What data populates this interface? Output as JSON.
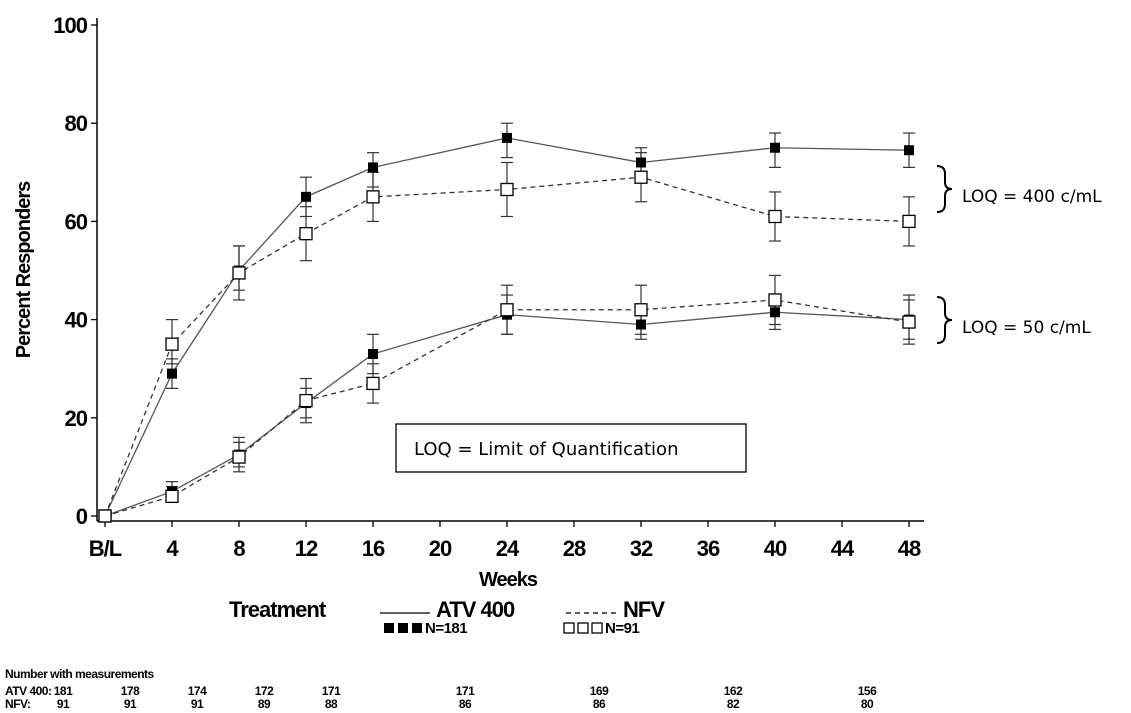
{
  "chart_data": {
    "type": "line",
    "xlabel": "Weeks",
    "ylabel": "Percent Responders",
    "ylim": [
      0,
      100
    ],
    "yticks": [
      0,
      20,
      40,
      60,
      80,
      100
    ],
    "xlim": [
      0,
      48
    ],
    "xticks": [
      {
        "value": 0,
        "label": "B/L"
      },
      {
        "value": 4,
        "label": "4"
      },
      {
        "value": 8,
        "label": "8"
      },
      {
        "value": 12,
        "label": "12"
      },
      {
        "value": 16,
        "label": "16"
      },
      {
        "value": 20,
        "label": "20"
      },
      {
        "value": 24,
        "label": "24"
      },
      {
        "value": 28,
        "label": "28"
      },
      {
        "value": 32,
        "label": "32"
      },
      {
        "value": 36,
        "label": "36"
      },
      {
        "value": 40,
        "label": "40"
      },
      {
        "value": 44,
        "label": "44"
      },
      {
        "value": 48,
        "label": "48"
      }
    ],
    "grid": false,
    "x": [
      0,
      4,
      8,
      12,
      16,
      24,
      32,
      40,
      48
    ],
    "series": [
      {
        "name": "ATV 400",
        "group": "LOQ = 400 c/mL",
        "line": "solid",
        "marker": "filled-square",
        "values": [
          0,
          29,
          50,
          65,
          71,
          77,
          72,
          75,
          74.5
        ],
        "err_low": [
          0,
          26,
          46,
          61,
          67,
          73,
          69,
          71,
          71
        ],
        "err_high": [
          0,
          32,
          55,
          69,
          74,
          80,
          75,
          78,
          78
        ]
      },
      {
        "name": "NFV",
        "group": "LOQ = 400 c/mL",
        "line": "dashed",
        "marker": "open-square",
        "values": [
          0,
          35,
          49.5,
          57.5,
          65,
          66.5,
          69,
          61,
          60
        ],
        "err_low": [
          0,
          31,
          44,
          52,
          60,
          61,
          64,
          56,
          55
        ],
        "err_high": [
          0,
          40,
          55,
          63,
          70,
          72,
          74,
          66,
          65
        ]
      },
      {
        "name": "ATV 400",
        "group": "LOQ = 50 c/mL",
        "line": "solid",
        "marker": "filled-square",
        "values": [
          0,
          5,
          12.5,
          23,
          33,
          41,
          39,
          41.5,
          40
        ],
        "err_low": [
          0,
          3,
          10,
          20,
          29,
          37,
          36,
          38,
          36
        ],
        "err_high": [
          0,
          7,
          15,
          26,
          37,
          45,
          42,
          45,
          44
        ]
      },
      {
        "name": "NFV",
        "group": "LOQ = 50 c/mL",
        "line": "dashed",
        "marker": "open-square",
        "values": [
          0,
          4,
          12,
          23.5,
          27,
          42,
          42,
          44,
          39.5
        ],
        "err_low": [
          0,
          3,
          9,
          19,
          23,
          37,
          37,
          39,
          35
        ],
        "err_high": [
          0,
          6,
          16,
          28,
          31,
          47,
          47,
          49,
          45
        ]
      }
    ],
    "legend": {
      "title": "Treatment",
      "entries": [
        {
          "label": "ATV 400",
          "n_label": "N=181",
          "line": "solid",
          "marker": "filled-square"
        },
        {
          "label": "NFV",
          "n_label": "N=91",
          "line": "dashed",
          "marker": "open-square"
        }
      ],
      "placement": "bottom"
    },
    "annotations": {
      "loq_400": "LOQ = 400 c/mL",
      "loq_50": "LOQ = 50 c/mL",
      "note": "LOQ = Limit of Quantification"
    },
    "measurements": {
      "title": "Number with measurements",
      "weeks": [
        0,
        4,
        8,
        12,
        16,
        24,
        32,
        40,
        48
      ],
      "rows": [
        {
          "label": "ATV 400:",
          "counts": [
            "181",
            "178",
            "174",
            "172",
            "171",
            "171",
            "169",
            "162",
            "156"
          ]
        },
        {
          "label": "NFV:",
          "counts": [
            "91",
            "91",
            "91",
            "89",
            "88",
            "86",
            "86",
            "82",
            "80"
          ]
        }
      ]
    }
  }
}
